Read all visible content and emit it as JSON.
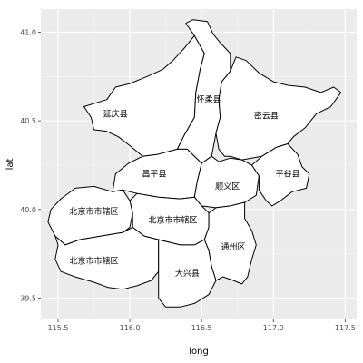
{
  "chart_data": {
    "type": "map",
    "title": "",
    "xlabel": "long",
    "ylabel": "lat",
    "xlim": [
      115.38,
      117.58
    ],
    "ylim": [
      39.38,
      41.13
    ],
    "xticks": [
      115.5,
      116.0,
      116.5,
      117.0,
      117.5
    ],
    "xtick_labels": [
      "115.5",
      "116.0",
      "116.5",
      "117.0",
      "117.5"
    ],
    "yticks": [
      39.5,
      40.0,
      40.5,
      41.0
    ],
    "ytick_labels": [
      "39.5",
      "40.0",
      "40.5",
      "41.0"
    ],
    "grid": true,
    "colors": {
      "panel": "#ebebeb",
      "grid_major": "#ffffff",
      "grid_minor": "#f5f5f5",
      "outline": "#000000",
      "fill": "#ffffff",
      "tick_text": "#4d4d4d"
    },
    "regions": [
      {
        "name": "延庆县",
        "label_pos": [
          115.9,
          40.54
        ],
        "outline": [
          [
            115.68,
            40.58
          ],
          [
            115.84,
            40.62
          ],
          [
            115.9,
            40.69
          ],
          [
            116.0,
            40.71
          ],
          [
            116.12,
            40.75
          ],
          [
            116.23,
            40.79
          ],
          [
            116.3,
            40.84
          ],
          [
            116.38,
            40.91
          ],
          [
            116.45,
            40.98
          ],
          [
            116.52,
            40.88
          ],
          [
            116.49,
            40.79
          ],
          [
            116.46,
            40.66
          ],
          [
            116.45,
            40.52
          ],
          [
            116.38,
            40.42
          ],
          [
            116.33,
            40.34
          ],
          [
            116.19,
            40.31
          ],
          [
            116.09,
            40.3
          ],
          [
            116.0,
            40.36
          ],
          [
            115.92,
            40.41
          ],
          [
            115.84,
            40.44
          ],
          [
            115.75,
            40.45
          ],
          [
            115.73,
            40.52
          ],
          [
            115.68,
            40.58
          ]
        ]
      },
      {
        "name": "怀柔县",
        "label_pos": [
          116.55,
          40.62
        ],
        "outline": [
          [
            116.45,
            40.98
          ],
          [
            116.39,
            41.05
          ],
          [
            116.44,
            41.07
          ],
          [
            116.54,
            41.06
          ],
          [
            116.58,
            40.99
          ],
          [
            116.63,
            40.94
          ],
          [
            116.7,
            40.88
          ],
          [
            116.7,
            40.78
          ],
          [
            116.64,
            40.72
          ],
          [
            116.62,
            40.62
          ],
          [
            116.63,
            40.52
          ],
          [
            116.6,
            40.43
          ],
          [
            116.57,
            40.3
          ],
          [
            116.5,
            40.26
          ],
          [
            116.4,
            40.34
          ],
          [
            116.33,
            40.34
          ],
          [
            116.38,
            40.42
          ],
          [
            116.45,
            40.52
          ],
          [
            116.46,
            40.66
          ],
          [
            116.49,
            40.79
          ],
          [
            116.52,
            40.88
          ],
          [
            116.45,
            40.98
          ]
        ]
      },
      {
        "name": "密云县",
        "label_pos": [
          116.95,
          40.53
        ],
        "outline": [
          [
            116.7,
            40.78
          ],
          [
            116.74,
            40.86
          ],
          [
            116.81,
            40.84
          ],
          [
            116.9,
            40.77
          ],
          [
            117.0,
            40.72
          ],
          [
            117.1,
            40.7
          ],
          [
            117.22,
            40.69
          ],
          [
            117.33,
            40.66
          ],
          [
            117.42,
            40.69
          ],
          [
            117.47,
            40.66
          ],
          [
            117.4,
            40.58
          ],
          [
            117.3,
            40.54
          ],
          [
            117.22,
            40.46
          ],
          [
            117.14,
            40.41
          ],
          [
            117.1,
            40.37
          ],
          [
            117.02,
            40.35
          ],
          [
            116.92,
            40.3
          ],
          [
            116.78,
            40.28
          ],
          [
            116.7,
            40.3
          ],
          [
            116.66,
            40.3
          ],
          [
            116.62,
            40.34
          ],
          [
            116.6,
            40.43
          ],
          [
            116.63,
            40.52
          ],
          [
            116.62,
            40.62
          ],
          [
            116.64,
            40.72
          ],
          [
            116.7,
            40.78
          ]
        ]
      },
      {
        "name": "昌平县",
        "label_pos": [
          116.17,
          40.2
        ],
        "outline": [
          [
            115.88,
            40.1
          ],
          [
            115.9,
            40.2
          ],
          [
            115.99,
            40.26
          ],
          [
            116.09,
            40.3
          ],
          [
            116.19,
            40.31
          ],
          [
            116.33,
            40.34
          ],
          [
            116.4,
            40.34
          ],
          [
            116.5,
            40.26
          ],
          [
            116.47,
            40.16
          ],
          [
            116.45,
            40.07
          ],
          [
            116.35,
            40.06
          ],
          [
            116.2,
            40.07
          ],
          [
            116.05,
            40.09
          ],
          [
            115.95,
            40.11
          ],
          [
            115.88,
            40.1
          ]
        ]
      },
      {
        "name": "顺义区",
        "label_pos": [
          116.68,
          40.13
        ],
        "outline": [
          [
            116.47,
            40.16
          ],
          [
            116.5,
            40.26
          ],
          [
            116.57,
            40.3
          ],
          [
            116.62,
            40.27
          ],
          [
            116.7,
            40.29
          ],
          [
            116.78,
            40.28
          ],
          [
            116.85,
            40.25
          ],
          [
            116.9,
            40.19
          ],
          [
            116.88,
            40.08
          ],
          [
            116.8,
            40.04
          ],
          [
            116.7,
            40.02
          ],
          [
            116.6,
            40.01
          ],
          [
            116.5,
            40.02
          ],
          [
            116.45,
            40.07
          ],
          [
            116.47,
            40.16
          ]
        ]
      },
      {
        "name": "平谷县",
        "label_pos": [
          117.1,
          40.2
        ],
        "outline": [
          [
            116.85,
            40.25
          ],
          [
            116.92,
            40.3
          ],
          [
            117.02,
            40.35
          ],
          [
            117.1,
            40.37
          ],
          [
            117.17,
            40.31
          ],
          [
            117.2,
            40.24
          ],
          [
            117.25,
            40.2
          ],
          [
            117.23,
            40.12
          ],
          [
            117.13,
            40.1
          ],
          [
            117.05,
            40.05
          ],
          [
            116.99,
            40.02
          ],
          [
            116.95,
            40.05
          ],
          [
            116.9,
            40.11
          ],
          [
            116.9,
            40.19
          ],
          [
            116.85,
            40.25
          ]
        ]
      },
      {
        "name": "北京市市辖区",
        "label_pos": [
          115.75,
          39.99
        ],
        "outline": [
          [
            115.45,
            40.0
          ],
          [
            115.52,
            40.06
          ],
          [
            115.62,
            40.12
          ],
          [
            115.75,
            40.13
          ],
          [
            115.88,
            40.1
          ],
          [
            115.95,
            40.11
          ],
          [
            116.0,
            40.05
          ],
          [
            116.02,
            39.98
          ],
          [
            116.0,
            39.9
          ],
          [
            115.95,
            39.87
          ],
          [
            115.8,
            39.85
          ],
          [
            115.65,
            39.83
          ],
          [
            115.55,
            39.8
          ],
          [
            115.48,
            39.85
          ],
          [
            115.43,
            39.93
          ],
          [
            115.45,
            40.0
          ]
        ]
      },
      {
        "name": "北京市市辖区",
        "label_pos": [
          116.3,
          39.94
        ],
        "outline": [
          [
            116.0,
            40.05
          ],
          [
            116.05,
            40.09
          ],
          [
            116.2,
            40.07
          ],
          [
            116.35,
            40.06
          ],
          [
            116.45,
            40.07
          ],
          [
            116.5,
            40.02
          ],
          [
            116.55,
            39.98
          ],
          [
            116.55,
            39.9
          ],
          [
            116.52,
            39.83
          ],
          [
            116.45,
            39.8
          ],
          [
            116.35,
            39.8
          ],
          [
            116.25,
            39.82
          ],
          [
            116.1,
            39.85
          ],
          [
            116.02,
            39.9
          ],
          [
            116.02,
            39.98
          ],
          [
            116.0,
            40.05
          ]
        ]
      },
      {
        "name": "北京市市辖区",
        "label_pos": [
          115.75,
          39.71
        ],
        "outline": [
          [
            115.48,
            39.85
          ],
          [
            115.55,
            39.8
          ],
          [
            115.65,
            39.83
          ],
          [
            115.8,
            39.85
          ],
          [
            115.95,
            39.87
          ],
          [
            116.02,
            39.9
          ],
          [
            116.1,
            39.85
          ],
          [
            116.2,
            39.83
          ],
          [
            116.2,
            39.75
          ],
          [
            116.2,
            39.65
          ],
          [
            116.15,
            39.6
          ],
          [
            116.05,
            39.57
          ],
          [
            115.95,
            39.55
          ],
          [
            115.85,
            39.56
          ],
          [
            115.75,
            39.59
          ],
          [
            115.62,
            39.62
          ],
          [
            115.52,
            39.65
          ],
          [
            115.48,
            39.72
          ],
          [
            115.5,
            39.8
          ],
          [
            115.48,
            39.85
          ]
        ]
      },
      {
        "name": "大兴县",
        "label_pos": [
          116.4,
          39.64
        ],
        "outline": [
          [
            116.2,
            39.83
          ],
          [
            116.35,
            39.8
          ],
          [
            116.45,
            39.8
          ],
          [
            116.52,
            39.83
          ],
          [
            116.55,
            39.77
          ],
          [
            116.57,
            39.68
          ],
          [
            116.6,
            39.6
          ],
          [
            116.55,
            39.52
          ],
          [
            116.45,
            39.47
          ],
          [
            116.35,
            39.45
          ],
          [
            116.25,
            39.45
          ],
          [
            116.2,
            39.5
          ],
          [
            116.2,
            39.6
          ],
          [
            116.2,
            39.7
          ],
          [
            116.2,
            39.83
          ]
        ]
      },
      {
        "name": "通州区",
        "label_pos": [
          116.72,
          39.79
        ],
        "outline": [
          [
            116.52,
            39.83
          ],
          [
            116.55,
            39.9
          ],
          [
            116.55,
            39.98
          ],
          [
            116.6,
            40.01
          ],
          [
            116.7,
            40.02
          ],
          [
            116.8,
            40.04
          ],
          [
            116.8,
            39.95
          ],
          [
            116.85,
            39.88
          ],
          [
            116.88,
            39.8
          ],
          [
            116.85,
            39.72
          ],
          [
            116.82,
            39.62
          ],
          [
            116.78,
            39.58
          ],
          [
            116.72,
            39.6
          ],
          [
            116.65,
            39.62
          ],
          [
            116.6,
            39.6
          ],
          [
            116.57,
            39.68
          ],
          [
            116.55,
            39.77
          ],
          [
            116.52,
            39.83
          ]
        ]
      }
    ]
  }
}
